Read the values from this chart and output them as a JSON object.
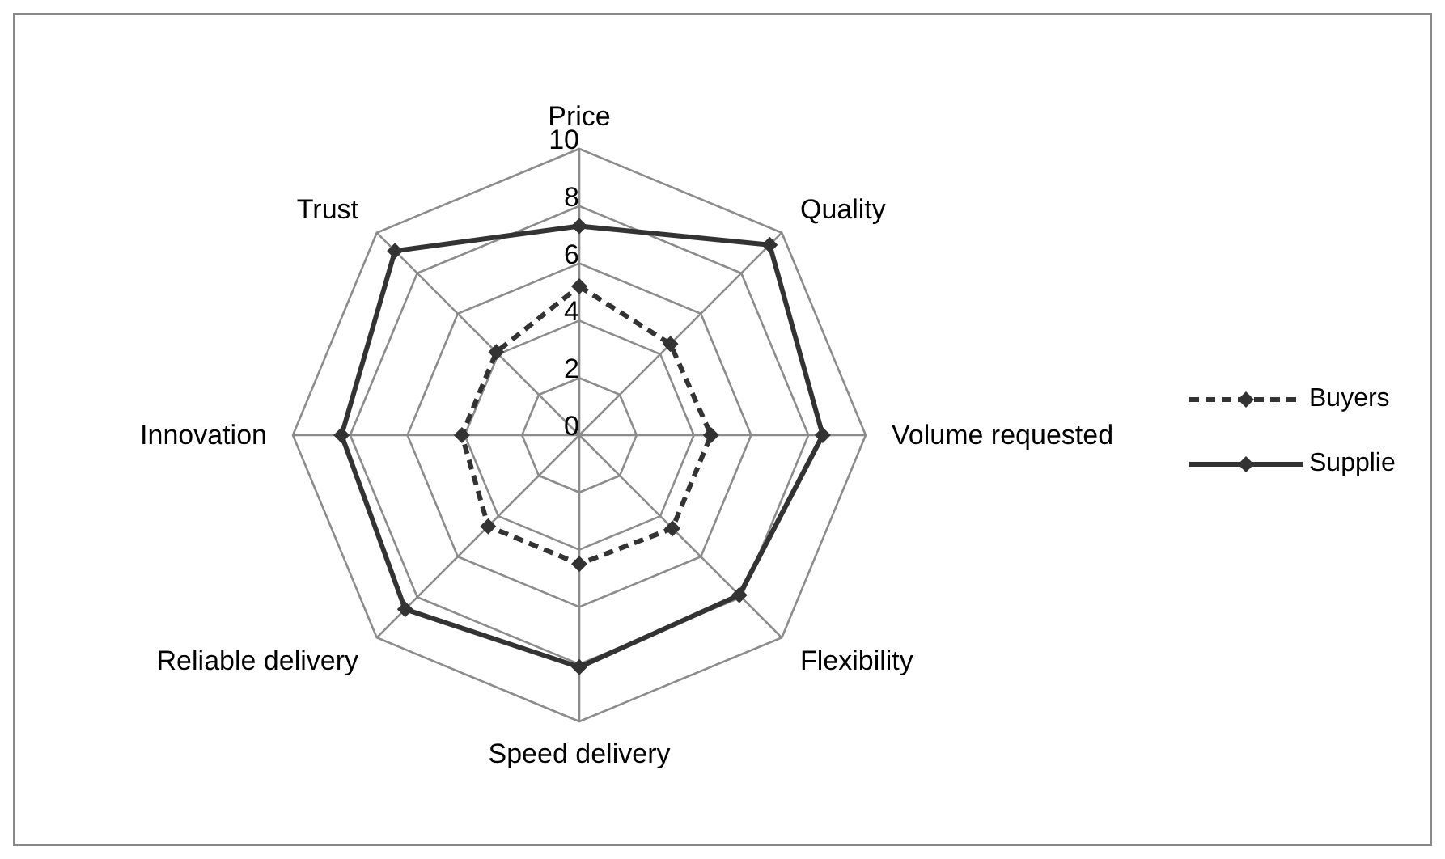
{
  "chart_data": {
    "type": "radar",
    "categories": [
      "Price",
      "Quality",
      "Volume requested",
      "Flexibility",
      "Speed delivery",
      "Reliable delivery",
      "Innovation",
      "Trust"
    ],
    "series": [
      {
        "name": "Buyers",
        "color": "#333333",
        "line_style": "dashed",
        "values": [
          5.2,
          4.5,
          4.6,
          4.6,
          4.5,
          4.5,
          4.1,
          4.1
        ]
      },
      {
        "name": "Supplie",
        "color": "#333333",
        "line_style": "solid",
        "values": [
          7.3,
          9.4,
          8.5,
          7.9,
          8.1,
          8.6,
          8.3,
          9.1
        ]
      }
    ],
    "ylim": [
      0,
      10
    ],
    "yticks": [
      0,
      2,
      4,
      6,
      8,
      10
    ],
    "grid": true,
    "legend": "right",
    "marker": "diamond"
  }
}
